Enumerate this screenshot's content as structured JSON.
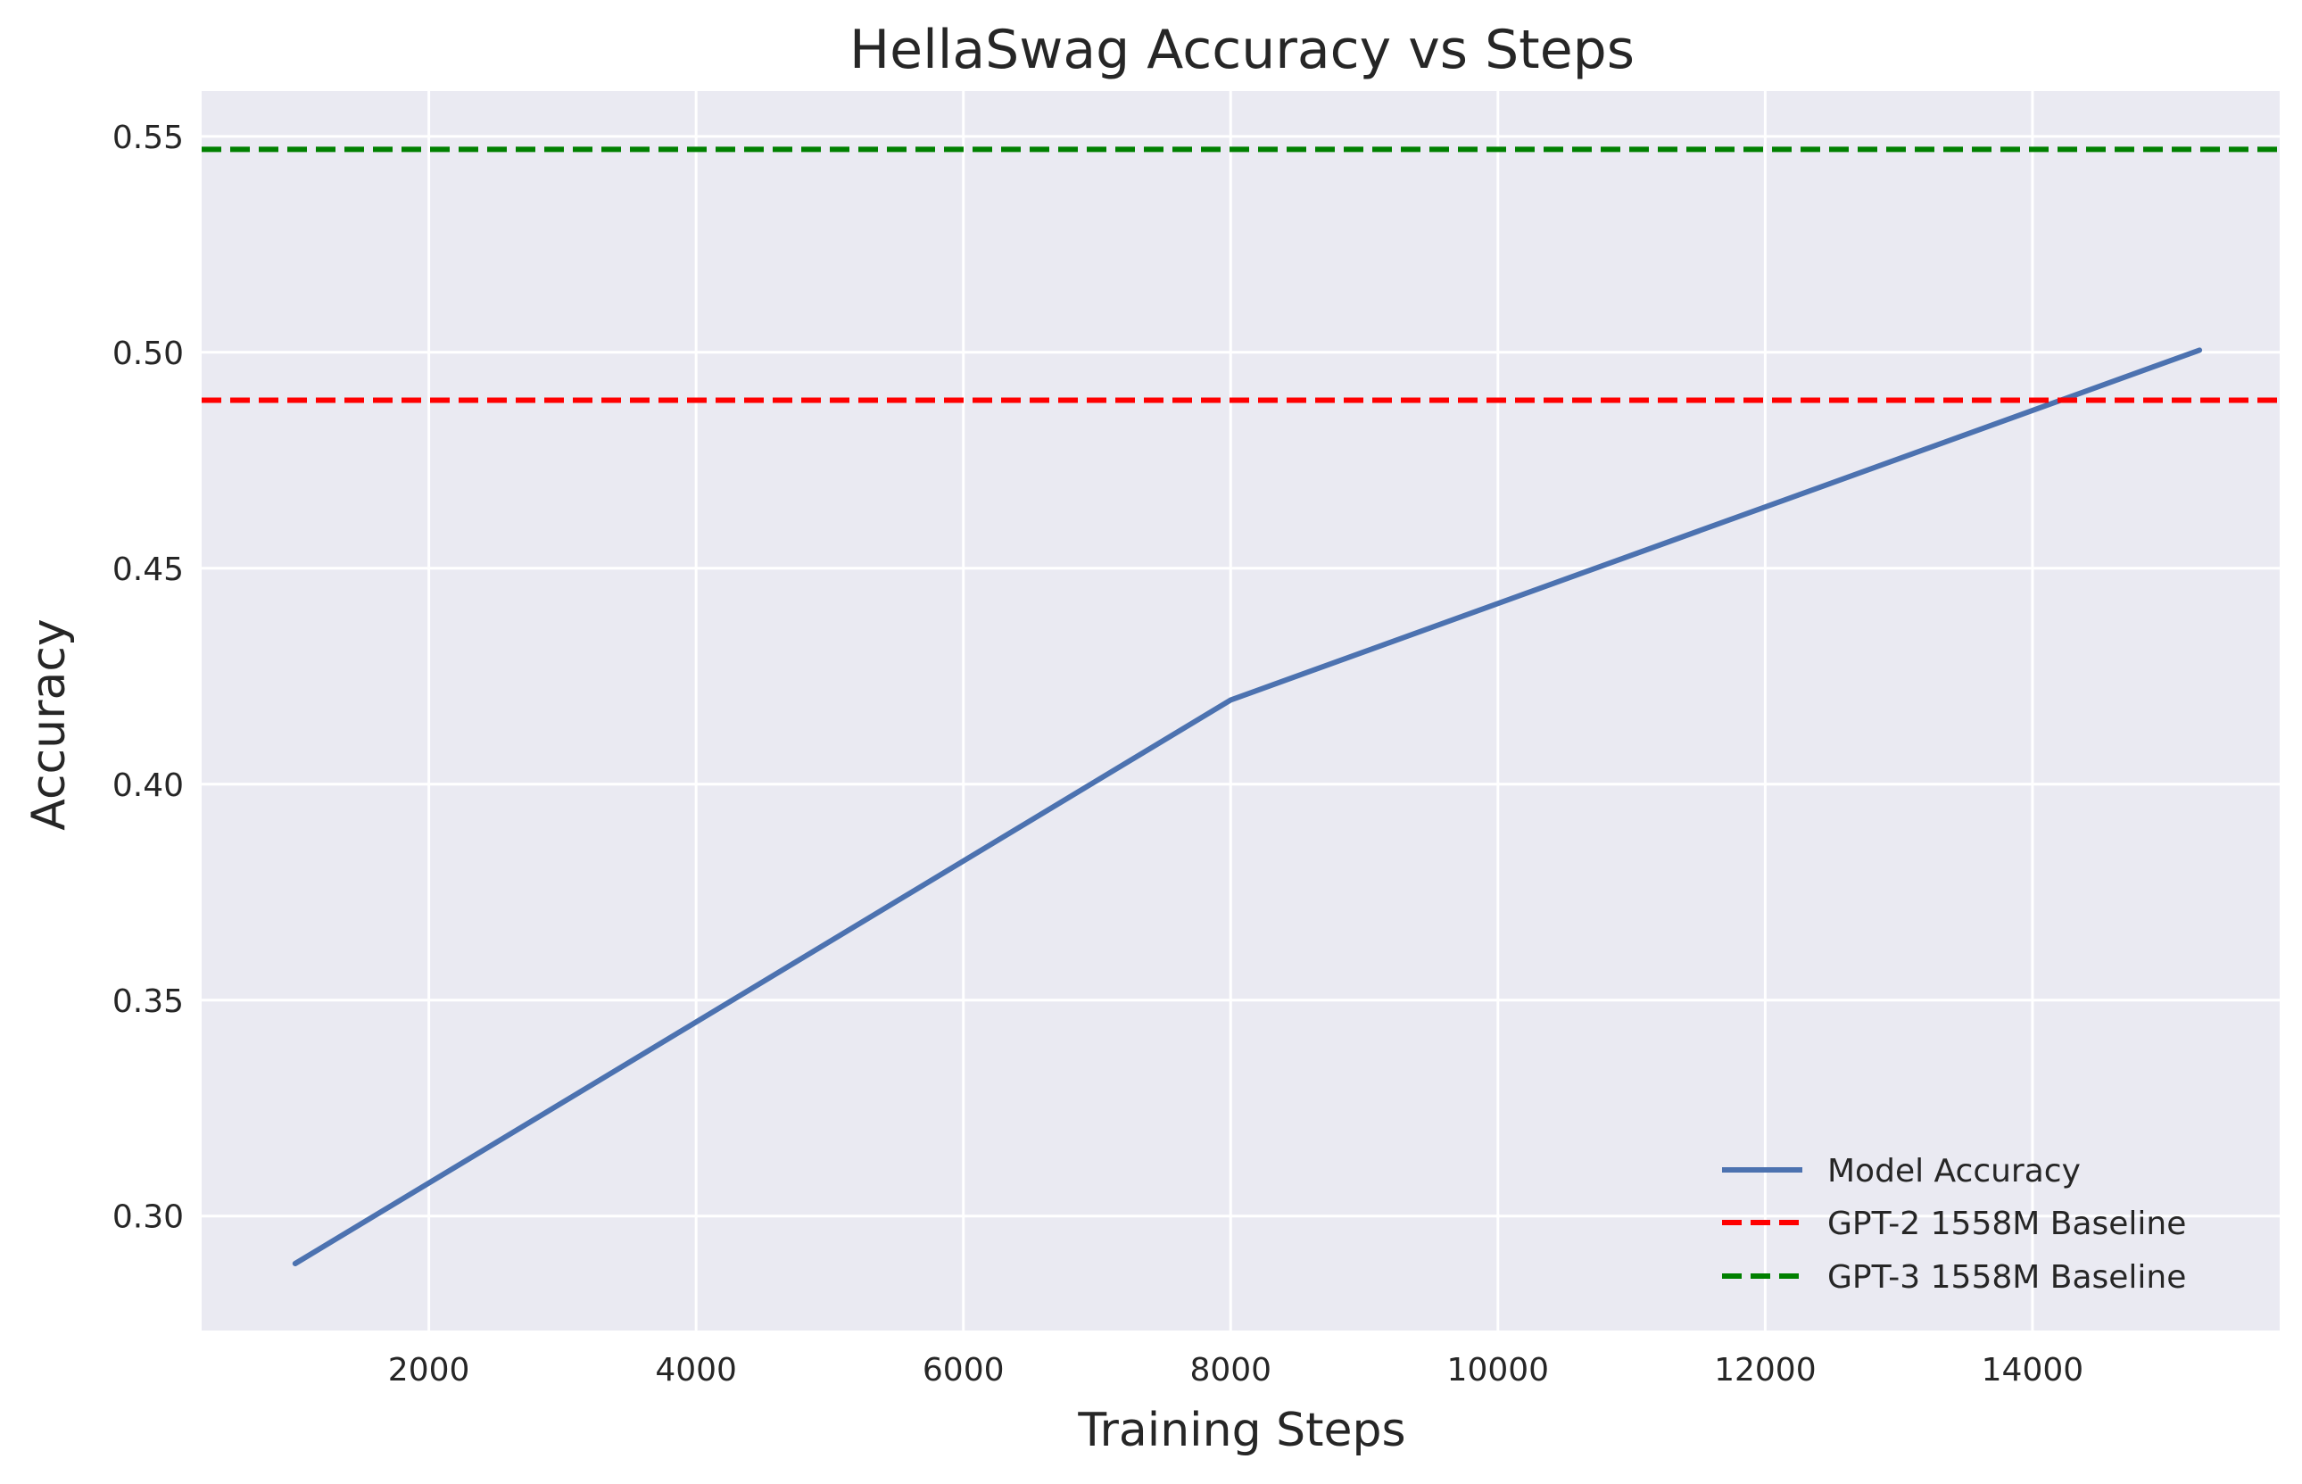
{
  "chart_data": {
    "type": "line",
    "title": "HellaSwag Accuracy vs Steps",
    "xlabel": "Training Steps",
    "ylabel": "Accuracy",
    "xlim": [
      300,
      15850
    ],
    "ylim": [
      0.2735,
      0.5605
    ],
    "xticks": [
      2000,
      4000,
      6000,
      8000,
      10000,
      12000,
      14000
    ],
    "xtick_labels": [
      "2000",
      "4000",
      "6000",
      "8000",
      "10000",
      "12000",
      "14000"
    ],
    "yticks": [
      0.3,
      0.35,
      0.4,
      0.45,
      0.5,
      0.55
    ],
    "ytick_labels": [
      "0.30",
      "0.35",
      "0.40",
      "0.45",
      "0.50",
      "0.55"
    ],
    "grid": true,
    "legend_position": "lower-right",
    "series": [
      {
        "name": "Model Accuracy",
        "style": "solid",
        "color": "#4c72b0",
        "x": [
          1000,
          8000,
          15250
        ],
        "y": [
          0.289,
          0.4195,
          0.5005
        ]
      }
    ],
    "reference_lines": [
      {
        "name": "GPT-2 1558M Baseline",
        "style": "dashed",
        "color": "#ff0000",
        "y": 0.4889
      },
      {
        "name": "GPT-3 1558M Baseline",
        "style": "dashed",
        "color": "#008000",
        "y": 0.547
      }
    ],
    "colors": {
      "plot_background": "#eaeaf2",
      "grid": "#ffffff",
      "text": "#262626"
    }
  }
}
